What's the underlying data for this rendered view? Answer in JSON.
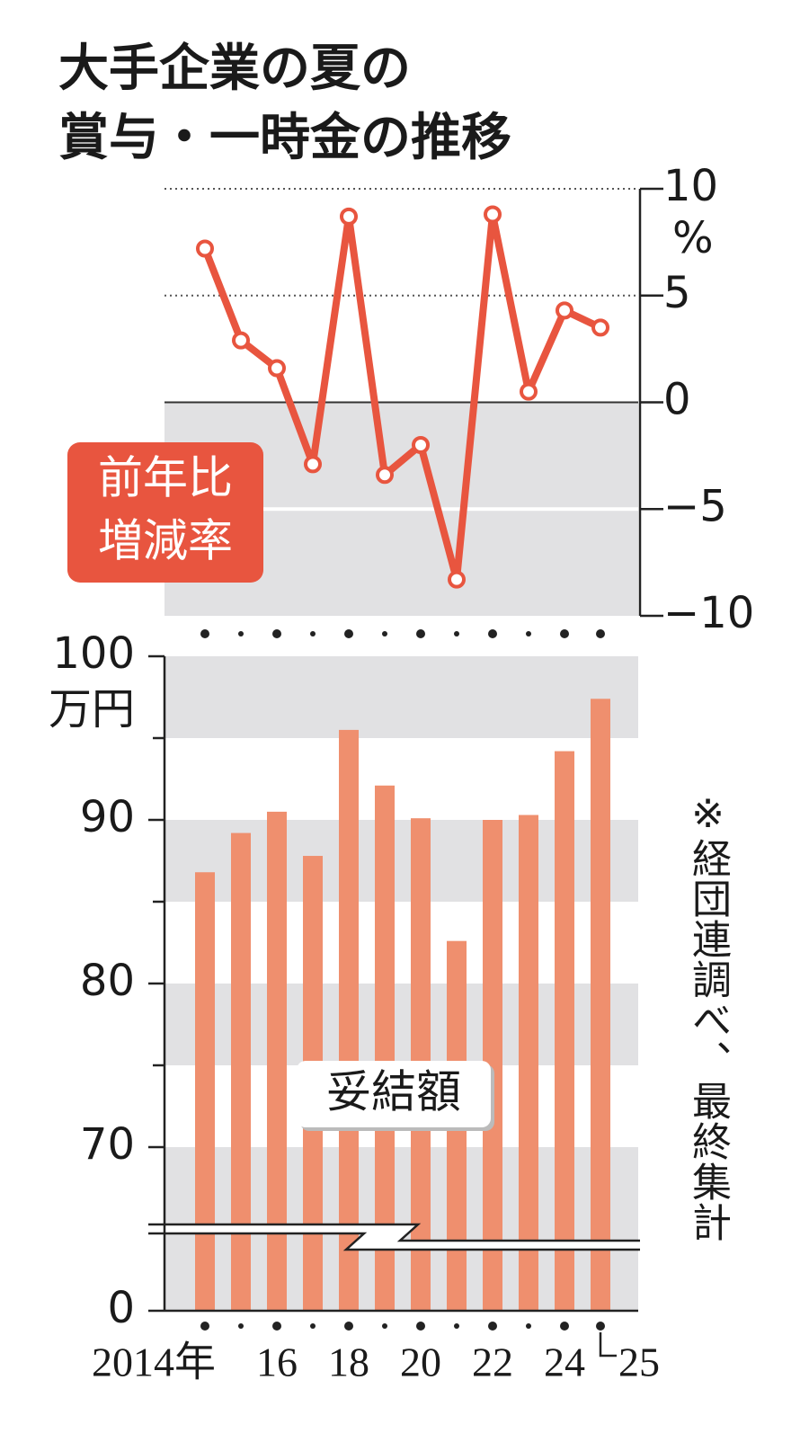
{
  "title": [
    "大手企業の夏の",
    "賞与・一時金の推移"
  ],
  "note": "※経団連調べ、最終集計",
  "chart_data": [
    {
      "type": "line",
      "label": [
        "前年比",
        "増減率"
      ],
      "unit": "%",
      "series": [
        {
          "color": "#e8553f",
          "values": [
            7.2,
            2.9,
            1.6,
            -2.9,
            8.7,
            -3.4,
            -2.0,
            -8.3,
            8.8,
            0.5,
            4.3,
            3.5
          ]
        }
      ],
      "ylim": [
        -10,
        10
      ],
      "yticks": [
        10,
        5,
        0,
        {
          "value": -5,
          "label": "−5"
        },
        {
          "value": -10,
          "label": "−10"
        }
      ],
      "axis_side": "right",
      "grid": true
    },
    {
      "type": "bar",
      "label": "妥結額",
      "unit": "万円",
      "categories": [
        "2014年",
        null,
        "16",
        null,
        "18",
        null,
        "20",
        null,
        "22",
        null,
        "24",
        "25"
      ],
      "values": [
        86.8,
        89.2,
        90.5,
        87.8,
        95.5,
        92.1,
        90.1,
        82.6,
        90.0,
        90.3,
        94.2,
        97.4
      ],
      "color": "#ef8f6e",
      "ylim": [
        0,
        100
      ],
      "y_break": [
        0,
        60
      ],
      "yticks": [
        0,
        70,
        80,
        90,
        100
      ],
      "minor_yticks": [
        75,
        85,
        95
      ],
      "axis_side": "left",
      "grid": true
    }
  ]
}
